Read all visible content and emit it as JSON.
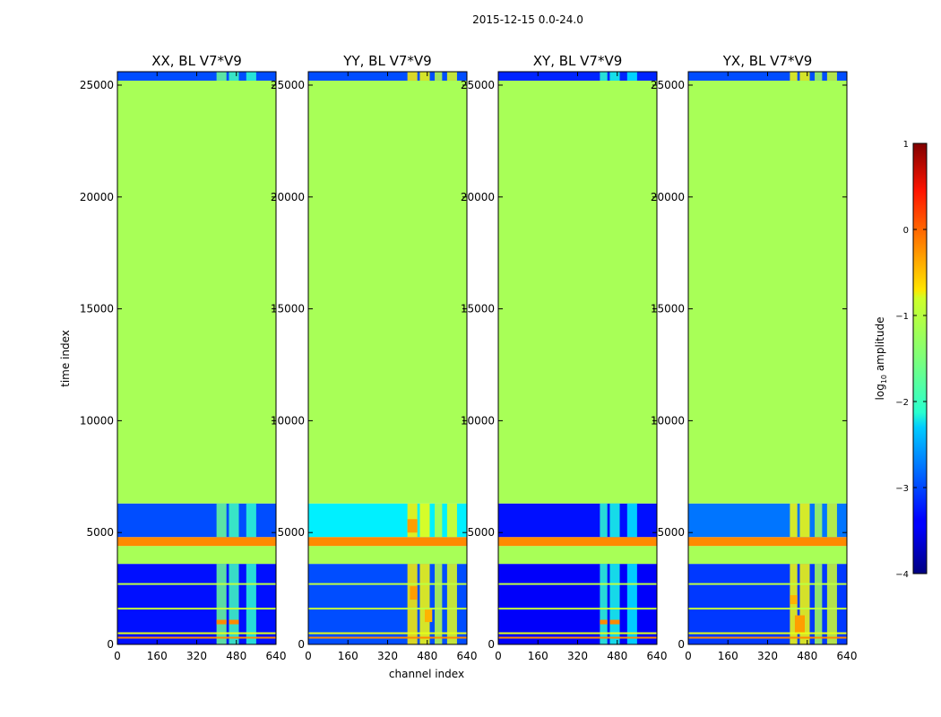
{
  "chart_data": {
    "type": "heatmap",
    "title": "2015-12-15 0.0-24.0",
    "xlabel": "channel index",
    "ylabel": "time index",
    "xlim": [
      0,
      640
    ],
    "ylim": [
      0,
      25600
    ],
    "x_ticks": [
      0,
      160,
      320,
      480,
      640
    ],
    "x_tick_labels": [
      "0",
      "160",
      "320",
      "480",
      "640"
    ],
    "y_ticks": [
      0,
      5000,
      10000,
      15000,
      20000,
      25000
    ],
    "y_tick_labels": [
      "0",
      "5000",
      "10000",
      "15000",
      "20000",
      "25000"
    ],
    "colorbar": {
      "label_prefix": "log",
      "label_sub": "10",
      "label_suffix": " amplitude",
      "range": [
        -4,
        1
      ],
      "ticks": [
        1,
        0,
        -1,
        -2,
        -3,
        -4
      ],
      "tick_labels": [
        "1",
        "0",
        "−1",
        "−2",
        "−3",
        "−4"
      ],
      "colormap": "jet"
    },
    "panels": [
      {
        "title": "XX, BL V7*V9",
        "blocks": [
          {
            "t0": 0,
            "t1": 3600,
            "value": -3.3
          },
          {
            "t0": 3600,
            "t1": 4400,
            "value": -1.3
          },
          {
            "t0": 4400,
            "t1": 4800,
            "value": -0.3
          },
          {
            "t0": 4800,
            "t1": 6300,
            "value": -3.0
          },
          {
            "t0": 6300,
            "t1": 25200,
            "value": -1.3
          },
          {
            "t0": 25200,
            "t1": 25600,
            "value": -3.0
          }
        ],
        "hot_columns": [
          [
            400,
            440,
            -1.6
          ],
          [
            450,
            490,
            -1.8
          ],
          [
            520,
            560,
            -1.9
          ]
        ],
        "hot_spots": [
          [
            400,
            440,
            900,
            1100,
            -0.3
          ],
          [
            450,
            490,
            900,
            1100,
            -0.3
          ]
        ]
      },
      {
        "title": "YY, BL V7*V9",
        "blocks": [
          {
            "t0": 0,
            "t1": 3600,
            "value": -3.0
          },
          {
            "t0": 3600,
            "t1": 4400,
            "value": -1.3
          },
          {
            "t0": 4400,
            "t1": 4800,
            "value": -0.3
          },
          {
            "t0": 4800,
            "t1": 6300,
            "value": -2.2
          },
          {
            "t0": 6300,
            "t1": 25200,
            "value": -1.3
          },
          {
            "t0": 25200,
            "t1": 25600,
            "value": -3.0
          }
        ],
        "hot_columns": [
          [
            400,
            440,
            -0.8
          ],
          [
            450,
            490,
            -0.9
          ],
          [
            510,
            540,
            -1.2
          ],
          [
            560,
            600,
            -1.0
          ]
        ],
        "hot_spots": [
          [
            410,
            440,
            2000,
            2600,
            -0.4
          ],
          [
            470,
            500,
            1000,
            1600,
            -0.5
          ],
          [
            400,
            440,
            5000,
            5600,
            -0.4
          ]
        ]
      },
      {
        "title": "XY, BL V7*V9",
        "blocks": [
          {
            "t0": 0,
            "t1": 3600,
            "value": -3.4
          },
          {
            "t0": 3600,
            "t1": 4400,
            "value": -1.3
          },
          {
            "t0": 4400,
            "t1": 4800,
            "value": -0.3
          },
          {
            "t0": 4800,
            "t1": 6300,
            "value": -3.3
          },
          {
            "t0": 6300,
            "t1": 25200,
            "value": -1.3
          },
          {
            "t0": 25200,
            "t1": 25600,
            "value": -3.2
          }
        ],
        "hot_columns": [
          [
            410,
            440,
            -1.9
          ],
          [
            450,
            490,
            -2.0
          ],
          [
            520,
            560,
            -2.2
          ]
        ],
        "hot_spots": [
          [
            410,
            440,
            900,
            1100,
            -0.3
          ],
          [
            450,
            490,
            900,
            1100,
            -0.3
          ]
        ]
      },
      {
        "title": "YX, BL V7*V9",
        "blocks": [
          {
            "t0": 0,
            "t1": 3600,
            "value": -3.1
          },
          {
            "t0": 3600,
            "t1": 4400,
            "value": -1.3
          },
          {
            "t0": 4400,
            "t1": 4800,
            "value": -0.3
          },
          {
            "t0": 4800,
            "t1": 6300,
            "value": -2.8
          },
          {
            "t0": 6300,
            "t1": 25200,
            "value": -1.3
          },
          {
            "t0": 25200,
            "t1": 25600,
            "value": -3.0
          }
        ],
        "hot_columns": [
          [
            410,
            440,
            -0.9
          ],
          [
            450,
            490,
            -0.9
          ],
          [
            510,
            540,
            -1.3
          ],
          [
            560,
            600,
            -1.1
          ]
        ],
        "hot_spots": [
          [
            430,
            470,
            500,
            1300,
            -0.4
          ],
          [
            410,
            440,
            1800,
            2200,
            -0.5
          ]
        ]
      }
    ],
    "stripe_lines": [
      {
        "t": 300,
        "value": -0.3
      },
      {
        "t": 500,
        "value": -1.0
      },
      {
        "t": 1600,
        "value": -1.2
      },
      {
        "t": 2700,
        "value": -1.2
      }
    ]
  }
}
